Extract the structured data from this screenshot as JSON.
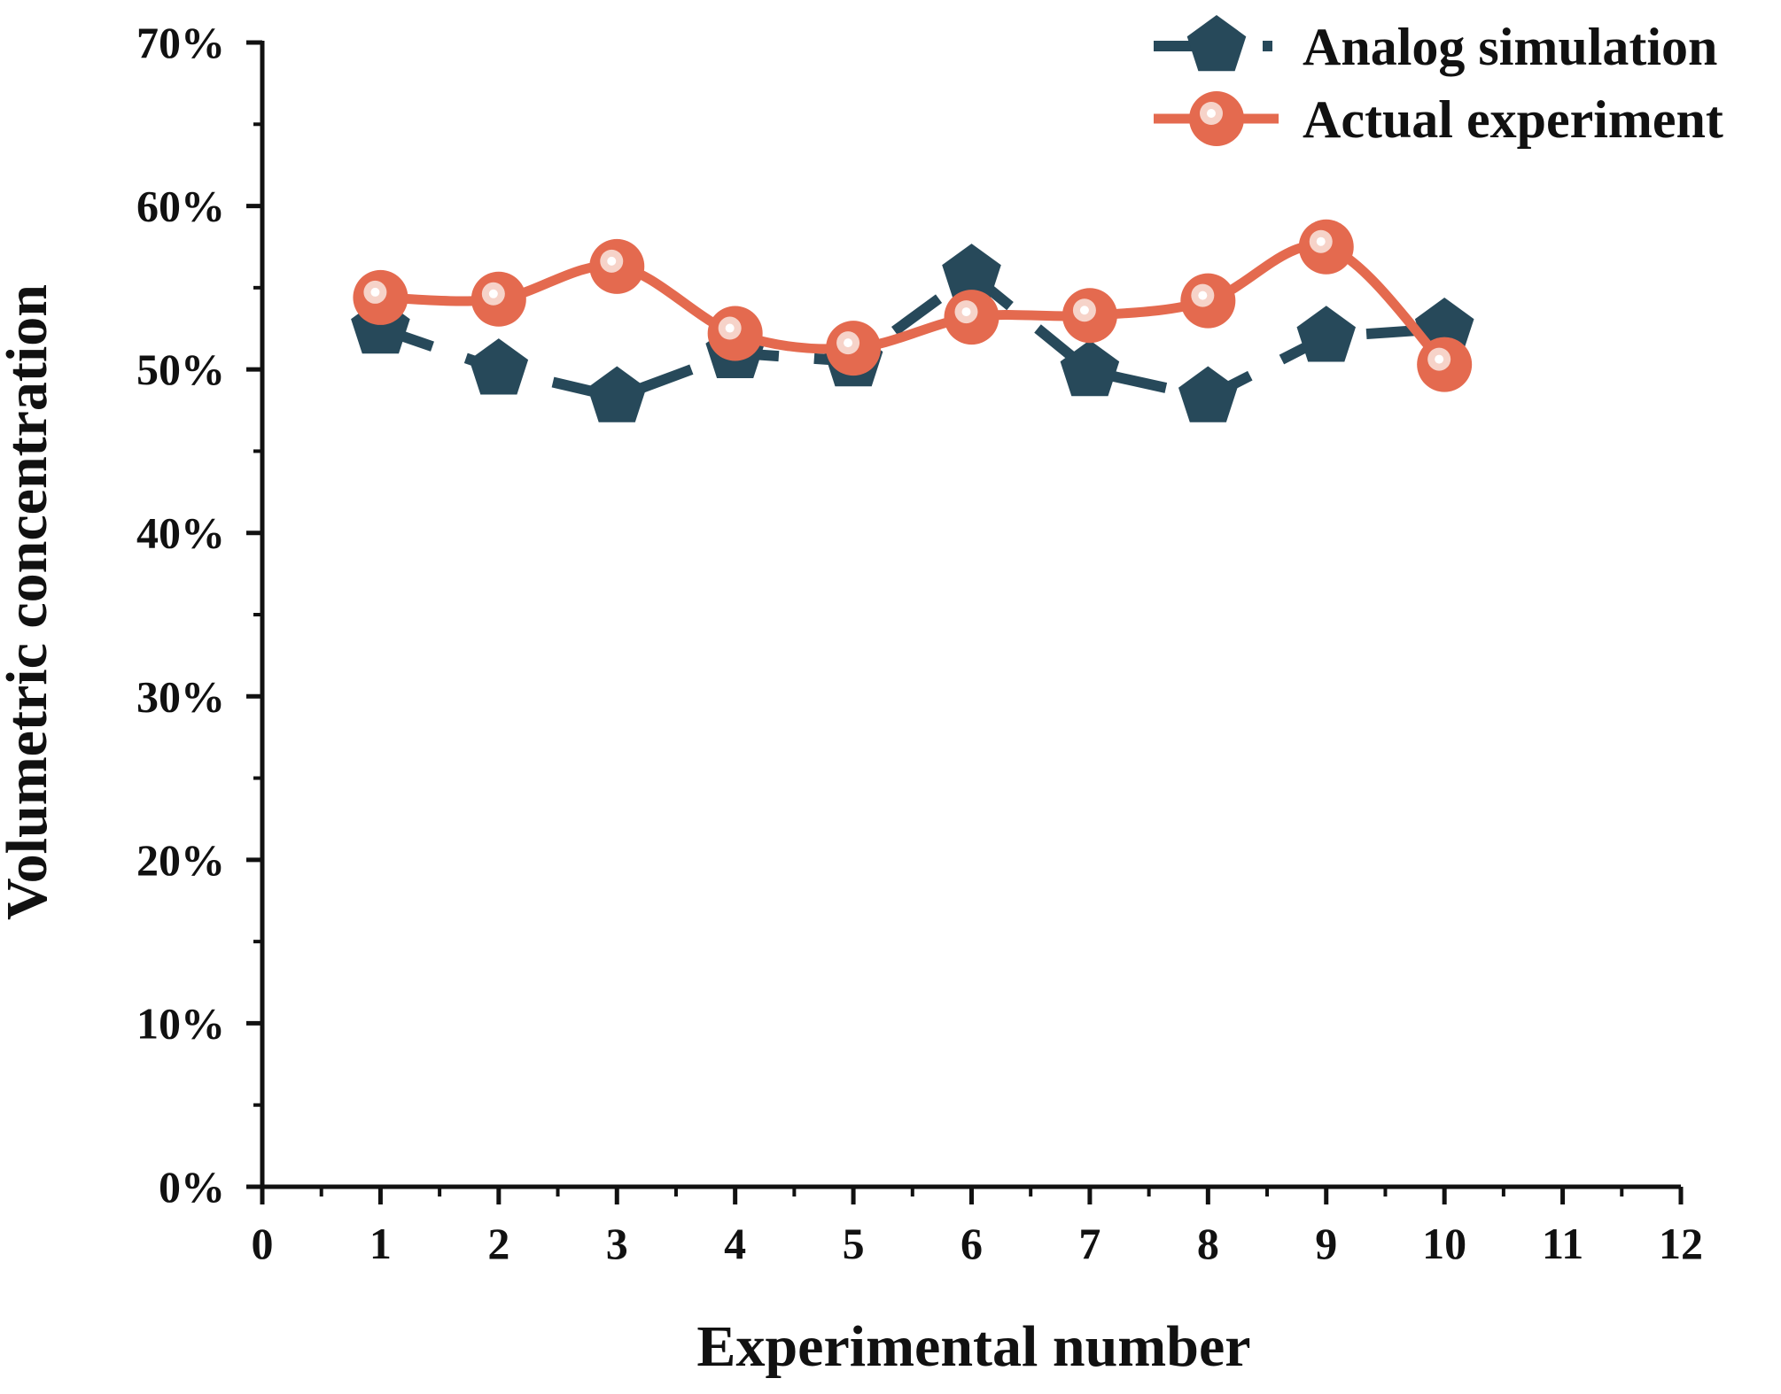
{
  "chart_data": {
    "type": "line",
    "title": "",
    "xlabel": "Experimental number",
    "ylabel": "Volumetric concentration",
    "xlim": [
      0,
      12
    ],
    "ylim": [
      0,
      70
    ],
    "x_ticks": [
      "0",
      "1",
      "2",
      "3",
      "4",
      "5",
      "6",
      "7",
      "8",
      "9",
      "10",
      "11",
      "12"
    ],
    "y_ticks": [
      "0%",
      "10%",
      "20%",
      "30%",
      "40%",
      "50%",
      "60%",
      "70%"
    ],
    "grid": false,
    "legend_position": "top-right",
    "series": [
      {
        "name": "Analog simulation",
        "color": "#27495a",
        "marker": "pentagon",
        "line_style": "dashed",
        "x": [
          1,
          2,
          3,
          4,
          5,
          6,
          7,
          8,
          9,
          10
        ],
        "y": [
          52.5,
          50.0,
          48.3,
          51.0,
          50.5,
          55.8,
          49.9,
          48.3,
          52.0,
          52.5
        ]
      },
      {
        "name": "Actual experiment",
        "color": "#e46a4f",
        "marker": "circle",
        "line_style": "solid-smooth",
        "x": [
          1,
          2,
          3,
          4,
          5,
          6,
          7,
          8,
          9,
          10
        ],
        "y": [
          54.4,
          54.3,
          56.3,
          52.2,
          51.3,
          53.2,
          53.3,
          54.2,
          57.5,
          50.3
        ]
      }
    ]
  }
}
